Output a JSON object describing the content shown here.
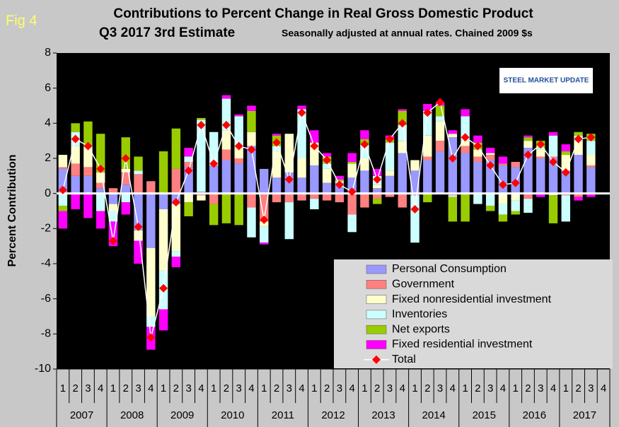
{
  "chart_data": {
    "type": "bar",
    "stacked": true,
    "fig_label": "Fig 4",
    "title": "Contributions to Percent Change in Real Gross Domestic Product",
    "subtitle": "Q3 2017 3rd  Estimate",
    "note": "Seasonally adjusted at annual rates. Chained 2009 $s",
    "logo": "STEEL MARKET UPDATE",
    "ylabel": "Percent Contribution",
    "ylim": [
      -10,
      8
    ],
    "yticks": [
      -10,
      -8,
      -6,
      -4,
      -2,
      0,
      2,
      4,
      6,
      8
    ],
    "categories": [
      "1",
      "2",
      "3",
      "4",
      "1",
      "2",
      "3",
      "4",
      "1",
      "2",
      "3",
      "4",
      "1",
      "2",
      "3",
      "4",
      "1",
      "2",
      "3",
      "4",
      "1",
      "2",
      "3",
      "4",
      "1",
      "2",
      "3",
      "4",
      "1",
      "2",
      "3",
      "4",
      "1",
      "2",
      "3",
      "4",
      "1",
      "2",
      "3",
      "4",
      "1",
      "2",
      "3",
      "4"
    ],
    "years": [
      "2007",
      "2008",
      "2009",
      "2010",
      "2011",
      "2012",
      "2013",
      "2014",
      "2015",
      "2016",
      "2017"
    ],
    "series": [
      {
        "name": "Personal Consumption",
        "color": "#9999ff",
        "values": [
          1.4,
          1.0,
          1.0,
          0.3,
          -0.6,
          0.5,
          -2.1,
          -3.1,
          -0.9,
          -0.6,
          1.5,
          0.1,
          1.6,
          1.9,
          1.7,
          2.7,
          1.4,
          0.9,
          1.2,
          0.9,
          1.6,
          0.6,
          0.6,
          0.9,
          1.3,
          0.3,
          1.0,
          2.3,
          1.3,
          1.9,
          2.4,
          3.2,
          2.3,
          1.8,
          1.9,
          1.6,
          1.5,
          2.6,
          2.0,
          2.0,
          1.3,
          2.2,
          1.5,
          null
        ]
      },
      {
        "name": "Government",
        "color": "#ff8080",
        "values": [
          0.1,
          0.7,
          0.5,
          0.3,
          0.3,
          0.7,
          1.1,
          0.7,
          0.0,
          1.4,
          0.3,
          -0.1,
          -0.6,
          0.6,
          0.3,
          -0.8,
          -1.6,
          -0.5,
          -0.5,
          -0.4,
          -0.3,
          -0.4,
          -0.5,
          -1.2,
          -0.8,
          -0.3,
          -0.2,
          -0.8,
          -0.1,
          0.2,
          0.6,
          -0.1,
          0.4,
          0.3,
          0.3,
          0.1,
          0.3,
          -0.3,
          0.1,
          0.1,
          -0.1,
          -0.2,
          0.1,
          null
        ]
      },
      {
        "name": "Fixed nonresidential investment",
        "color": "#ffffcc",
        "values": [
          0.7,
          1.0,
          1.1,
          0.6,
          -0.4,
          0.2,
          -0.6,
          -3.9,
          -3.5,
          -2.7,
          -0.5,
          -0.3,
          0.1,
          1.1,
          0.6,
          0.8,
          -0.3,
          1.5,
          2.2,
          1.1,
          1.3,
          0.8,
          0.0,
          0.8,
          0.7,
          0.2,
          0.3,
          0.7,
          0.6,
          1.2,
          1.1,
          0.2,
          0.3,
          0.4,
          0.1,
          -0.6,
          -0.4,
          0.4,
          0.4,
          -0.1,
          0.9,
          0.8,
          0.6,
          null
        ]
      },
      {
        "name": "Inventories",
        "color": "#ccffff",
        "values": [
          -0.7,
          0.8,
          0.1,
          -1.0,
          -0.6,
          -0.5,
          0.2,
          -0.6,
          -2.2,
          -0.3,
          0.3,
          4.1,
          1.8,
          1.8,
          1.8,
          -1.7,
          -0.9,
          0.3,
          -2.1,
          2.8,
          -0.6,
          0.3,
          0.1,
          -1.0,
          0.8,
          0.5,
          1.6,
          0.9,
          -2.7,
          1.4,
          0.3,
          -0.1,
          1.4,
          -0.6,
          -0.7,
          -0.6,
          -0.6,
          -0.8,
          0.1,
          1.2,
          -1.5,
          0.3,
          0.8,
          null
        ]
      },
      {
        "name": "Net exports",
        "color": "#99cc00",
        "values": [
          -0.3,
          0.5,
          1.4,
          2.2,
          0.0,
          1.8,
          0.8,
          0.0,
          2.4,
          2.3,
          -0.8,
          0.1,
          -1.2,
          -1.7,
          -1.8,
          1.2,
          0.0,
          0.6,
          0.0,
          0.0,
          0.0,
          0.4,
          0.1,
          0.1,
          0.3,
          -0.3,
          0.2,
          0.8,
          0.0,
          -0.5,
          0.6,
          -1.4,
          -1.6,
          0.4,
          -0.3,
          -0.4,
          -0.2,
          0.2,
          0.4,
          -1.6,
          0.2,
          0.2,
          0.4,
          null
        ]
      },
      {
        "name": "Fixed residential investment",
        "color": "#ff00ff",
        "values": [
          -1.0,
          -0.9,
          -1.4,
          -1.0,
          -1.4,
          -0.7,
          -1.3,
          -1.3,
          -1.2,
          -0.6,
          0.5,
          0.0,
          0.0,
          0.2,
          0.1,
          0.3,
          -0.1,
          0.1,
          0.0,
          0.2,
          0.7,
          0.2,
          0.2,
          0.5,
          0.5,
          0.4,
          0.2,
          0.1,
          0.0,
          0.4,
          0.2,
          0.2,
          0.4,
          0.4,
          0.3,
          0.4,
          0.0,
          0.1,
          -0.2,
          0.2,
          0.4,
          -0.2,
          -0.2,
          null
        ]
      }
    ],
    "total": {
      "name": "Total",
      "color": "#ff0000",
      "line_color": "#ffffff",
      "values": [
        0.2,
        3.1,
        2.7,
        1.4,
        -2.7,
        2.0,
        -1.9,
        -8.2,
        -5.4,
        -0.5,
        1.3,
        3.9,
        1.7,
        3.9,
        2.7,
        2.5,
        -1.5,
        2.9,
        0.8,
        4.6,
        2.7,
        1.9,
        0.5,
        0.1,
        2.8,
        0.8,
        3.1,
        4.0,
        -0.9,
        4.6,
        5.2,
        2.0,
        3.2,
        2.7,
        1.6,
        0.5,
        0.6,
        2.2,
        2.8,
        1.8,
        1.2,
        3.1,
        3.2,
        null
      ]
    }
  }
}
